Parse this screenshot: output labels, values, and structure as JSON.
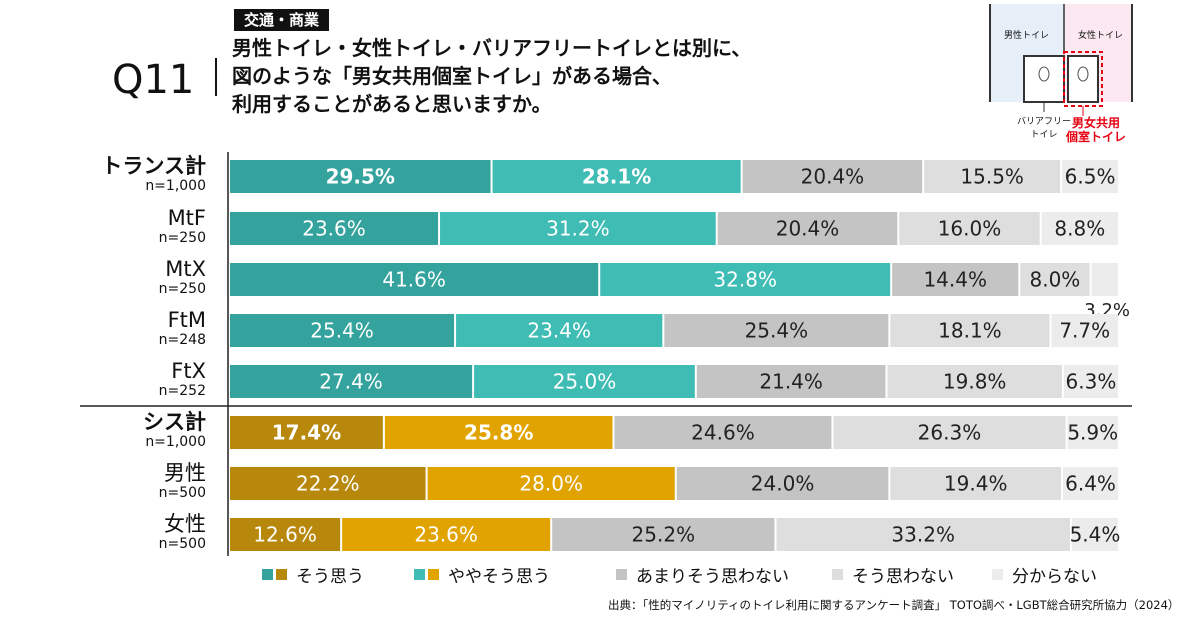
{
  "header": {
    "tag": "交通・商業",
    "qnum": "Q11",
    "question_lines": [
      "男性トイレ・女性トイレ・バリアフリートイレとは別に、",
      "図のような「男女共用個室トイレ」がある場合、",
      "利用することがあると思いますか。"
    ]
  },
  "illustration": {
    "male_label": "男性トイレ",
    "female_label": "女性トイレ",
    "barrier_free_label_lines": [
      "バリアフリー",
      "トイレ"
    ],
    "shared_label_lines": [
      "男女共用",
      "個室トイレ"
    ],
    "colors": {
      "male_bg": "#e6eef8",
      "female_bg": "#fbe8f0",
      "highlight": "#e60012"
    }
  },
  "chart_data": {
    "type": "bar",
    "orientation": "horizontal-stacked-100",
    "series_names": [
      "そう思う",
      "ややそう思う",
      "あまりそう思わない",
      "そう思わない",
      "分からない"
    ],
    "groups": [
      {
        "colors": [
          "#35a39d",
          "#3fbcb4",
          "#c4c4c4",
          "#dedede",
          "#ececec"
        ],
        "rows": [
          {
            "name": "トランス計",
            "n": "n=1,000",
            "bold": true,
            "values": [
              29.5,
              28.1,
              20.4,
              15.5,
              6.5
            ]
          },
          {
            "name": "MtF",
            "n": "n=250",
            "bold": false,
            "values": [
              23.6,
              31.2,
              20.4,
              16.0,
              8.8
            ]
          },
          {
            "name": "MtX",
            "n": "n=250",
            "bold": false,
            "values": [
              41.6,
              32.8,
              14.4,
              8.0,
              3.2
            ]
          },
          {
            "name": "FtM",
            "n": "n=248",
            "bold": false,
            "values": [
              25.4,
              23.4,
              25.4,
              18.1,
              7.7
            ]
          },
          {
            "name": "FtX",
            "n": "n=252",
            "bold": false,
            "values": [
              27.4,
              25.0,
              21.4,
              19.8,
              6.3
            ]
          }
        ]
      },
      {
        "colors": [
          "#b8880c",
          "#e0a300",
          "#c4c4c4",
          "#dedede",
          "#ececec"
        ],
        "rows": [
          {
            "name": "シス計",
            "n": "n=1,000",
            "bold": true,
            "values": [
              17.4,
              25.8,
              24.6,
              26.3,
              5.9
            ]
          },
          {
            "name": "男性",
            "n": "n=500",
            "bold": false,
            "values": [
              22.2,
              28.0,
              24.0,
              19.4,
              6.4
            ]
          },
          {
            "name": "女性",
            "n": "n=500",
            "bold": false,
            "values": [
              12.6,
              23.6,
              25.2,
              33.2,
              5.4
            ]
          }
        ]
      }
    ],
    "value_suffix": "%",
    "xlim": [
      0,
      100
    ]
  },
  "legend": [
    {
      "label": "そう思う",
      "colors": [
        "#35a39d",
        "#b8880c"
      ]
    },
    {
      "label": "ややそう思う",
      "colors": [
        "#3fbcb4",
        "#e0a300"
      ]
    },
    {
      "label": "あまりそう思わない",
      "colors": [
        "#c4c4c4"
      ]
    },
    {
      "label": "そう思わない",
      "colors": [
        "#dedede"
      ]
    },
    {
      "label": "分からない",
      "colors": [
        "#ececec"
      ]
    }
  ],
  "source": "出典：「性的マイノリティのトイレ利用に関するアンケート調査」 TOTO調べ・LGBT総合研究所協力（2024）"
}
